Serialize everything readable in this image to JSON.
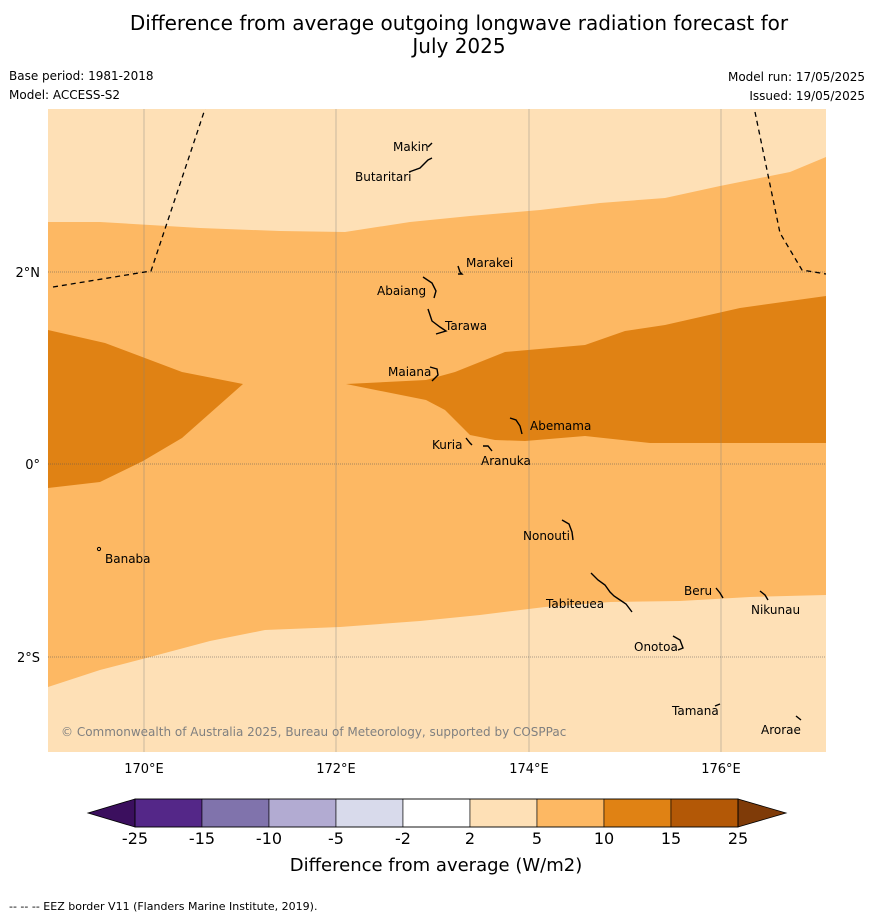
{
  "title": {
    "line1": "Difference from average outgoing longwave radiation forecast for",
    "line2": "July 2025"
  },
  "meta": {
    "base_period": "Base period: 1981-2018",
    "model": "Model: ACCESS-S2",
    "model_run": "Model run: 17/05/2025",
    "issued": "Issued: 19/05/2025"
  },
  "map": {
    "x_ticks": [
      "170°E",
      "172°E",
      "174°E",
      "176°E"
    ],
    "y_ticks": [
      "2°N",
      "0°",
      "2°S"
    ],
    "places": [
      {
        "name": "Makin"
      },
      {
        "name": "Butaritari"
      },
      {
        "name": "Marakei"
      },
      {
        "name": "Abaiang"
      },
      {
        "name": "Tarawa"
      },
      {
        "name": "Maiana"
      },
      {
        "name": "Abemama"
      },
      {
        "name": "Kuria"
      },
      {
        "name": "Aranuka"
      },
      {
        "name": "Nonouti"
      },
      {
        "name": "Banaba"
      },
      {
        "name": "Beru"
      },
      {
        "name": "Tabiteuea"
      },
      {
        "name": "Nikunau"
      },
      {
        "name": "Onotoa"
      },
      {
        "name": "Tamana"
      },
      {
        "name": "Arorae"
      }
    ],
    "copyright": "© Commonwealth of Australia 2025, Bureau of Meteorology, supported by COSPPac"
  },
  "colorbar": {
    "ticks": [
      "-25",
      "-15",
      "-10",
      "-5",
      "-2",
      "2",
      "5",
      "10",
      "15",
      "25"
    ],
    "label": "Difference from average (W/m2)",
    "colors": [
      "#3b0f5e",
      "#542788",
      "#8073ac",
      "#b2abd2",
      "#d8daeb",
      "#ffffff",
      "#fee0b6",
      "#fdb863",
      "#e08214",
      "#b35806",
      "#7f3b08"
    ]
  },
  "footer": "--  --  -- EEZ border V11 (Flanders Marine Institute, 2019)."
}
